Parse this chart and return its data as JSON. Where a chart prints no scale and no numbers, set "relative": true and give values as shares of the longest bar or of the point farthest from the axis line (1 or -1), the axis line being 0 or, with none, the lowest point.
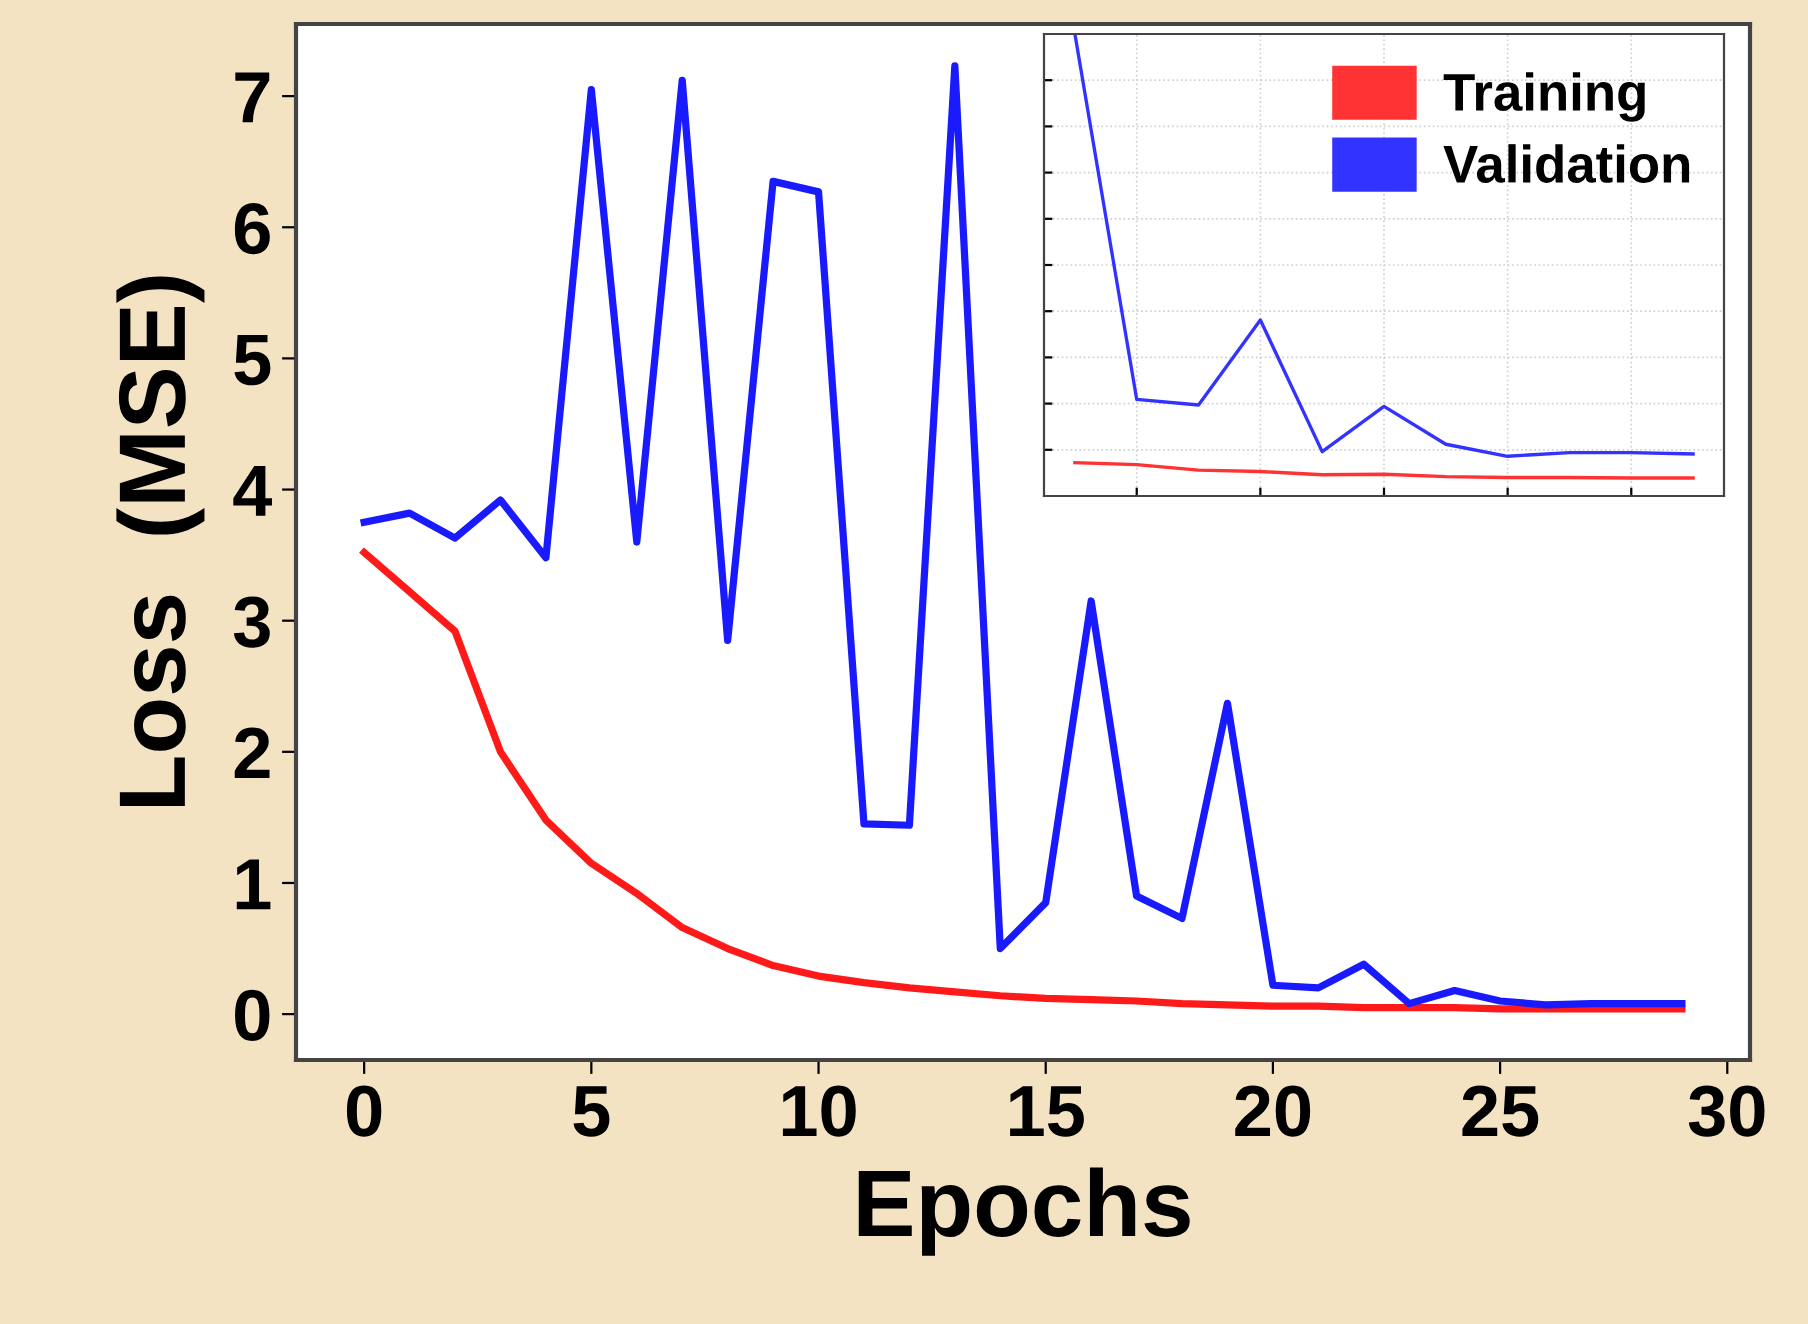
{
  "chart_data": [
    {
      "type": "line",
      "xlabel": "Epochs",
      "ylabel": "Loss  (MSE)",
      "x": [
        0,
        1,
        2,
        3,
        4,
        5,
        6,
        7,
        8,
        9,
        10,
        11,
        12,
        13,
        14,
        15,
        16,
        17,
        18,
        19,
        20,
        21,
        22,
        23,
        24,
        25,
        26,
        27,
        28,
        29
      ],
      "series": [
        {
          "color": "#ff1a1a",
          "values": [
            3.52,
            3.22,
            2.92,
            2.0,
            1.48,
            1.15,
            0.92,
            0.66,
            0.5,
            0.37,
            0.29,
            0.24,
            0.2,
            0.17,
            0.14,
            0.12,
            0.11,
            0.1,
            0.08,
            0.07,
            0.06,
            0.06,
            0.05,
            0.05,
            0.05,
            0.04,
            0.04,
            0.04,
            0.04,
            0.04
          ]
        },
        {
          "color": "#1a1aff",
          "values": [
            3.75,
            3.82,
            3.63,
            3.92,
            3.48,
            7.05,
            3.6,
            7.12,
            2.85,
            6.35,
            6.27,
            1.45,
            1.44,
            7.23,
            0.5,
            0.85,
            3.15,
            0.9,
            0.73,
            2.37,
            0.22,
            0.2,
            0.38,
            0.08,
            0.18,
            0.1,
            0.07,
            0.08,
            0.08,
            0.08
          ]
        }
      ],
      "xlim": [
        -1.5,
        30.5
      ],
      "ylim": [
        -0.35,
        7.55
      ],
      "xticks": [
        0,
        5,
        10,
        15,
        20,
        25,
        30
      ],
      "yticks": [
        0,
        1,
        2,
        3,
        4,
        5,
        6,
        7
      ],
      "grid": false,
      "legend": false
    },
    {
      "type": "line",
      "relative": true,
      "categories": [
        null,
        null,
        null,
        null,
        null,
        null,
        null,
        null,
        null,
        null,
        null
      ],
      "series": [
        {
          "name": "Training",
          "color": "#ff3333",
          "values": [
            0.072,
            0.068,
            0.056,
            0.053,
            0.046,
            0.047,
            0.042,
            0.04,
            0.04,
            0.039,
            0.039
          ]
        },
        {
          "name": "Validation",
          "color": "#3333ff",
          "values": [
            1,
            0.209,
            0.197,
            0.381,
            0.096,
            0.194,
            0.112,
            0.086,
            0.094,
            0.094,
            0.091
          ]
        }
      ],
      "grid": true,
      "legend": "top right"
    }
  ]
}
